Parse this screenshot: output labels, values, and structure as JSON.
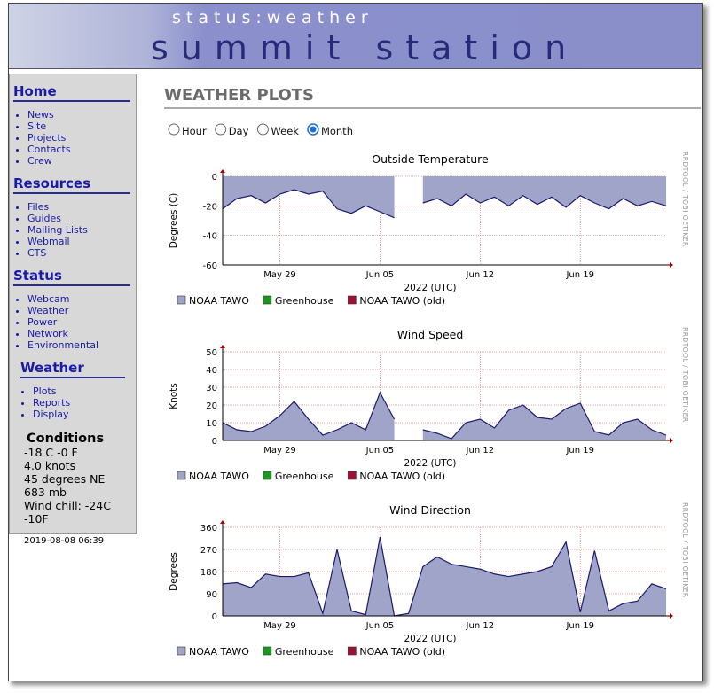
{
  "header": {
    "title": "status:weather",
    "subtitle": "summit station"
  },
  "sidebar": {
    "sections": [
      {
        "heading": "Home",
        "links": [
          "News",
          "Site",
          "Projects",
          "Contacts",
          "Crew"
        ]
      },
      {
        "heading": "Resources",
        "links": [
          "Files",
          "Guides",
          "Mailing Lists",
          "Webmail",
          "CTS"
        ]
      },
      {
        "heading": "Status",
        "links": [
          "Webcam",
          "Weather",
          "Power",
          "Network",
          "Environmental"
        ]
      },
      {
        "heading": "Weather",
        "links": [
          "Plots",
          "Reports",
          "Display"
        ]
      }
    ],
    "conditions": {
      "heading": "Conditions",
      "lines": [
        "-18 C -0 F",
        "4.0 knots",
        "45 degrees NE",
        "683 mb",
        "Wind chill: -24C -10F"
      ],
      "timestamp": "2019-08-08 06:39"
    }
  },
  "page_title": "WEATHER PLOTS",
  "range_options": {
    "options": [
      "Hour",
      "Day",
      "Week",
      "Month"
    ],
    "selected": 3
  },
  "chart_data": [
    {
      "type": "area",
      "title": "Outside Temperature",
      "y_label": "Degrees (C)",
      "x_label": "2022 (UTC)",
      "credit": "RRDTOOL / TOBI OETIKER",
      "x": [
        0,
        1,
        2,
        3,
        4,
        5,
        6,
        7,
        8,
        9,
        10,
        11,
        12,
        13,
        14,
        15,
        16,
        17,
        18,
        19,
        20,
        21,
        22,
        23,
        24,
        25,
        26,
        27,
        28,
        29,
        30,
        31
      ],
      "xlim": [
        0,
        31
      ],
      "xticks": [
        {
          "value": 4,
          "label": "May 29"
        },
        {
          "value": 11,
          "label": "Jun 05"
        },
        {
          "value": 18,
          "label": "Jun 12"
        },
        {
          "value": 25,
          "label": "Jun 19"
        }
      ],
      "ylim": [
        -60,
        0
      ],
      "yticks": [
        0,
        -20,
        -40,
        -60
      ],
      "grid": true,
      "series": [
        {
          "name": "NOAA TAWO",
          "color": "#a0a4c8",
          "line_color": "#1a1a6e",
          "values": [
            -22,
            -15,
            -13,
            -18,
            -12,
            -9,
            -12,
            -10,
            -22,
            -25,
            -20,
            -24,
            -28,
            null,
            -18,
            -15,
            -20,
            -12,
            -18,
            -14,
            -20,
            -13,
            -19,
            -14,
            -21,
            -13,
            -18,
            -22,
            -15,
            -20,
            -17,
            -20
          ]
        },
        {
          "name": "Greenhouse",
          "color": "#1a9a1a"
        },
        {
          "name": "NOAA TAWO (old)",
          "color": "#a01030"
        }
      ]
    },
    {
      "type": "area",
      "title": "Wind Speed",
      "y_label": "Knots",
      "x_label": "2022 (UTC)",
      "credit": "RRDTOOL / TOBI OETIKER",
      "x": [
        0,
        1,
        2,
        3,
        4,
        5,
        6,
        7,
        8,
        9,
        10,
        11,
        12,
        13,
        14,
        15,
        16,
        17,
        18,
        19,
        20,
        21,
        22,
        23,
        24,
        25,
        26,
        27,
        28,
        29,
        30,
        31
      ],
      "xlim": [
        0,
        31
      ],
      "xticks": [
        {
          "value": 4,
          "label": "May 29"
        },
        {
          "value": 11,
          "label": "Jun 05"
        },
        {
          "value": 18,
          "label": "Jun 12"
        },
        {
          "value": 25,
          "label": "Jun 19"
        }
      ],
      "ylim": [
        0,
        50
      ],
      "yticks": [
        0,
        10,
        20,
        30,
        40,
        50
      ],
      "grid": true,
      "series": [
        {
          "name": "NOAA TAWO",
          "color": "#a0a4c8",
          "line_color": "#1a1a6e",
          "values": [
            10,
            6,
            5,
            8,
            14,
            22,
            12,
            3,
            6,
            10,
            6,
            27,
            12,
            null,
            6,
            4,
            1,
            10,
            12,
            7,
            17,
            20,
            13,
            12,
            18,
            21,
            5,
            3,
            10,
            12,
            6,
            3
          ]
        },
        {
          "name": "Greenhouse",
          "color": "#1a9a1a"
        },
        {
          "name": "NOAA TAWO (old)",
          "color": "#a01030"
        }
      ]
    },
    {
      "type": "area",
      "title": "Wind Direction",
      "y_label": "Degrees",
      "x_label": "2022 (UTC)",
      "credit": "RRDTOOL / TOBI OETIKER",
      "x": [
        0,
        1,
        2,
        3,
        4,
        5,
        6,
        7,
        8,
        9,
        10,
        11,
        12,
        13,
        14,
        15,
        16,
        17,
        18,
        19,
        20,
        21,
        22,
        23,
        24,
        25,
        26,
        27,
        28,
        29,
        30,
        31
      ],
      "xlim": [
        0,
        31
      ],
      "xticks": [
        {
          "value": 4,
          "label": "May 29"
        },
        {
          "value": 11,
          "label": "Jun 05"
        },
        {
          "value": 18,
          "label": "Jun 12"
        },
        {
          "value": 25,
          "label": "Jun 19"
        }
      ],
      "ylim": [
        0,
        360
      ],
      "yticks": [
        0,
        90,
        180,
        270,
        360
      ],
      "grid": true,
      "series": [
        {
          "name": "NOAA TAWO",
          "color": "#a0a4c8",
          "line_color": "#1a1a6e",
          "values": [
            130,
            135,
            115,
            170,
            160,
            160,
            175,
            10,
            270,
            20,
            5,
            320,
            0,
            10,
            200,
            240,
            210,
            200,
            190,
            170,
            160,
            170,
            180,
            200,
            300,
            15,
            265,
            20,
            50,
            60,
            130,
            110
          ]
        },
        {
          "name": "Greenhouse",
          "color": "#1a9a1a"
        },
        {
          "name": "NOAA TAWO (old)",
          "color": "#a01030"
        }
      ]
    }
  ]
}
